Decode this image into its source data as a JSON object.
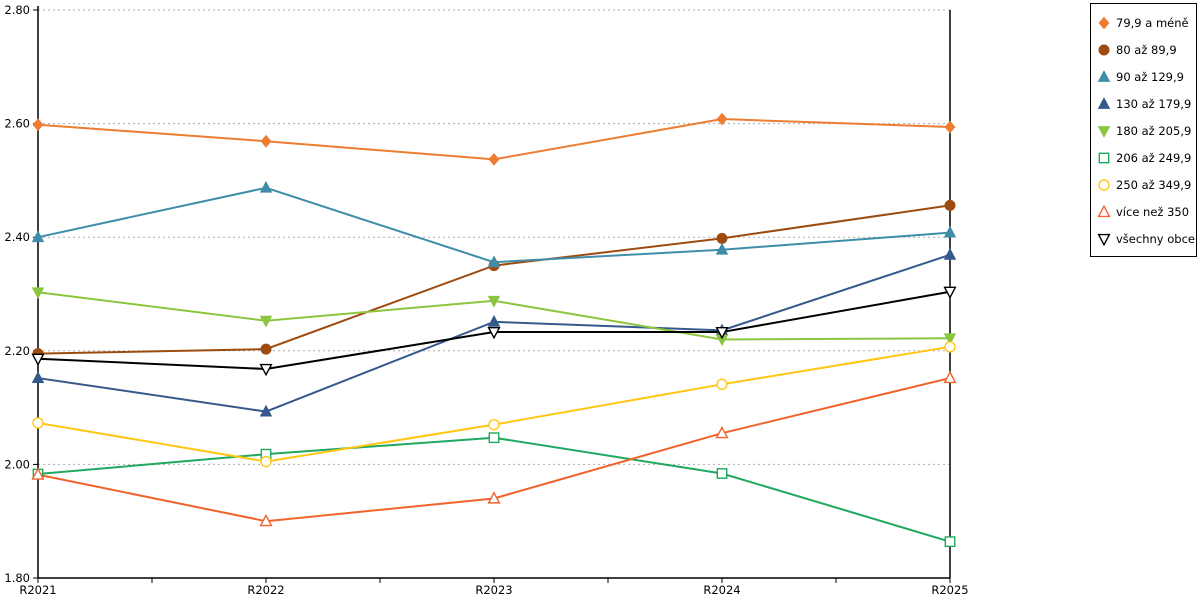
{
  "chart_data": {
    "type": "line",
    "title": "",
    "xlabel": "",
    "ylabel": "",
    "categories": [
      "R2021",
      "R2022",
      "R2023",
      "R2024",
      "R2025"
    ],
    "series": [
      {
        "name": "79,9 a méně",
        "color": "#ED7D31",
        "marker": "diamond",
        "filled": true,
        "values": [
          2.598,
          2.569,
          2.537,
          2.608,
          2.594
        ]
      },
      {
        "name": "80 až 89,9",
        "color": "#9E4B10",
        "marker": "circle",
        "filled": true,
        "values": [
          2.195,
          2.203,
          2.35,
          2.398,
          2.456
        ]
      },
      {
        "name": "90 až 129,9",
        "color": "#3F8DA8",
        "marker": "triangle-up",
        "filled": true,
        "values": [
          2.4,
          2.487,
          2.356,
          2.378,
          2.408
        ]
      },
      {
        "name": "130 až 179,9",
        "color": "#35598B",
        "marker": "triangle-up",
        "filled": true,
        "values": [
          2.152,
          2.093,
          2.251,
          2.236,
          2.369
        ]
      },
      {
        "name": "180 až 205,9",
        "color": "#8CC63E",
        "marker": "triangle-down",
        "filled": true,
        "values": [
          2.303,
          2.253,
          2.288,
          2.22,
          2.222
        ]
      },
      {
        "name": "206 až 249,9",
        "color": "#1FA85F",
        "marker": "square",
        "filled": false,
        "values": [
          1.983,
          2.018,
          2.047,
          1.984,
          1.864
        ]
      },
      {
        "name": "250 až 349,9",
        "color": "#FFC613",
        "marker": "circle",
        "filled": false,
        "values": [
          2.073,
          2.005,
          2.07,
          2.141,
          2.207
        ]
      },
      {
        "name": "více než 350",
        "color": "#F1632C",
        "marker": "triangle-up",
        "filled": false,
        "values": [
          1.982,
          1.9,
          1.94,
          2.055,
          2.152
        ]
      },
      {
        "name": "všechny obce",
        "color": "#000000",
        "marker": "triangle-down",
        "filled": false,
        "values": [
          2.186,
          2.168,
          2.233,
          2.233,
          2.304
        ]
      }
    ],
    "ylim": [
      1.8,
      2.8
    ],
    "yticks": [
      "1.80",
      "2.00",
      "2.20",
      "2.40",
      "2.60",
      "2.80"
    ],
    "grid": "horizontal dotted",
    "legend_position": "outside-right"
  },
  "colors": {
    "background": "#FFFFFF",
    "axis": "#000000",
    "gridline": "#ABABAB"
  }
}
